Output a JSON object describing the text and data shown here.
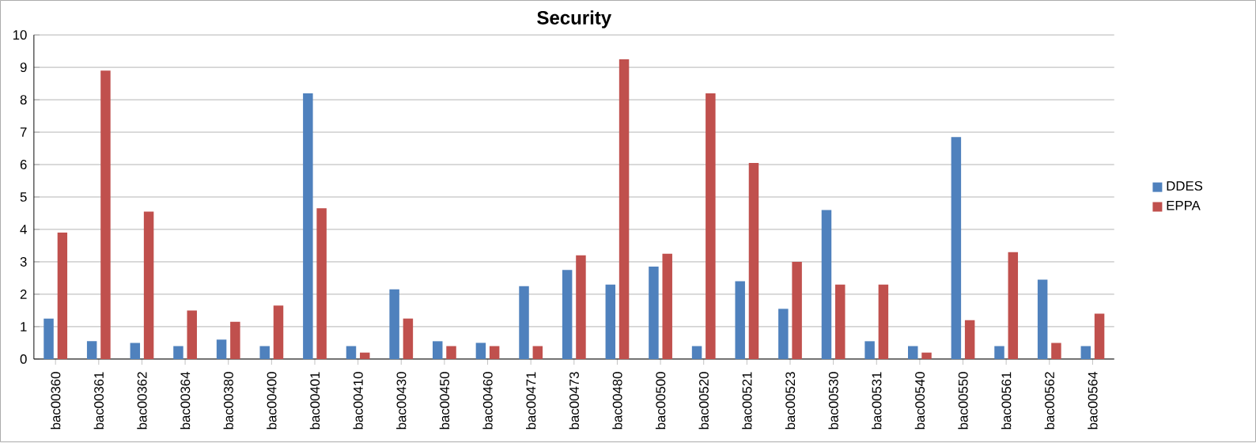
{
  "chart_data": {
    "type": "bar",
    "title": "Security",
    "categories": [
      "bac00360",
      "bac00361",
      "bac00362",
      "bac00364",
      "bac00380",
      "bac00400",
      "bac00401",
      "bac00410",
      "bac00430",
      "bac00450",
      "bac00460",
      "bac00471",
      "bac00473",
      "bac00480",
      "bac00500",
      "bac00520",
      "bac00521",
      "bac00523",
      "bac00530",
      "bac00531",
      "bac00540",
      "bac00550",
      "bac00561",
      "bac00562",
      "bac00564"
    ],
    "series": [
      {
        "name": "DDES",
        "color": "#4f81bd",
        "values": [
          1.25,
          0.55,
          0.5,
          0.4,
          0.6,
          0.4,
          8.2,
          0.4,
          2.15,
          0.55,
          0.5,
          2.25,
          2.75,
          2.3,
          2.85,
          0.4,
          2.4,
          1.55,
          4.6,
          0.55,
          0.4,
          6.85,
          0.4,
          2.45,
          0.4
        ]
      },
      {
        "name": "EPPA",
        "color": "#c0504d",
        "values": [
          3.9,
          8.9,
          4.55,
          1.5,
          1.15,
          1.65,
          4.65,
          0.2,
          1.25,
          0.4,
          0.4,
          0.4,
          3.2,
          9.25,
          3.25,
          8.2,
          6.05,
          3.0,
          2.3,
          2.3,
          0.2,
          1.2,
          3.3,
          0.5,
          1.4
        ]
      }
    ],
    "ylim": [
      0,
      10
    ],
    "yticks": [
      0,
      1,
      2,
      3,
      4,
      5,
      6,
      7,
      8,
      9,
      10
    ],
    "grid": "y",
    "legend": "right"
  }
}
